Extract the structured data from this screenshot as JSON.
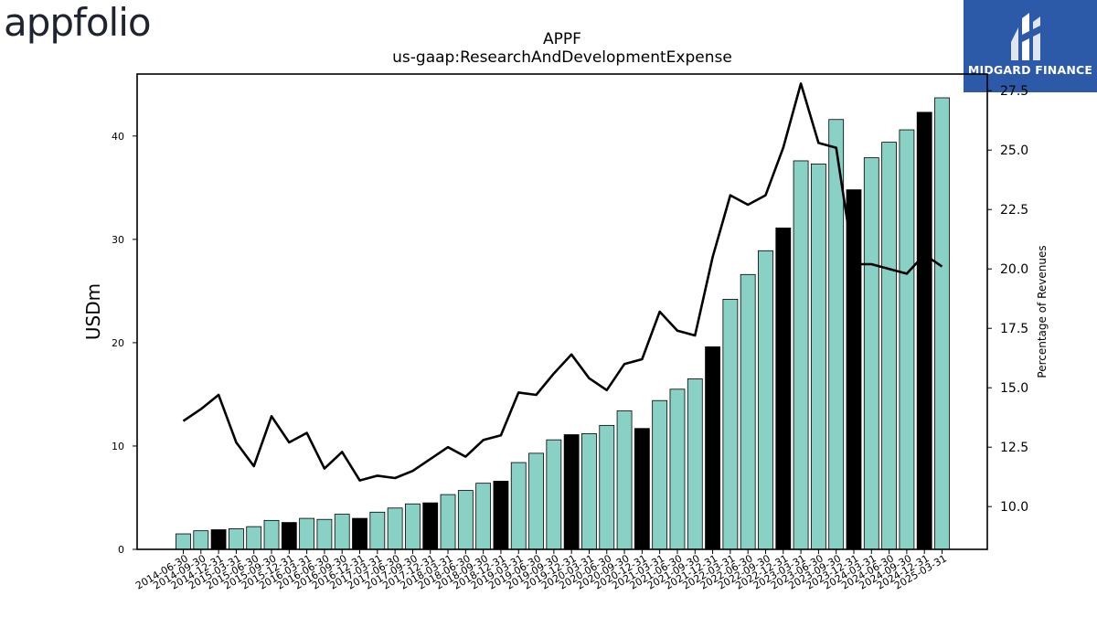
{
  "header": {
    "company_logo_text": "appfolio",
    "brand_name": "MIDGARD FINANCE"
  },
  "chart_data": {
    "type": "bar",
    "title": "APPF",
    "subtitle": "us-gaap:ResearchAndDevelopmentExpense",
    "ylabel": "USDm",
    "y2label": "Percentage of Revenues",
    "ylim": [
      0,
      46
    ],
    "y2lim": [
      8.2,
      28.2
    ],
    "yticks": [
      0,
      10,
      20,
      30,
      40
    ],
    "y2ticks": [
      10.0,
      12.5,
      15.0,
      17.5,
      20.0,
      22.5,
      25.0,
      27.5
    ],
    "colors": {
      "bar": "#88d1c4",
      "bar_q4": "#000000",
      "line": "#000000"
    },
    "categories": [
      "2014-06-30",
      "2014-09-30",
      "2014-12-31",
      "2015-03-31",
      "2015-06-30",
      "2015-09-30",
      "2015-12-31",
      "2016-03-31",
      "2016-06-30",
      "2016-09-30",
      "2016-12-31",
      "2017-03-31",
      "2017-06-30",
      "2017-09-30",
      "2017-12-31",
      "2018-03-31",
      "2018-06-30",
      "2018-09-30",
      "2018-12-31",
      "2019-03-31",
      "2019-06-30",
      "2019-09-30",
      "2019-12-31",
      "2020-03-31",
      "2020-06-30",
      "2020-09-30",
      "2020-12-31",
      "2021-03-31",
      "2021-06-30",
      "2021-09-30",
      "2021-12-31",
      "2022-03-31",
      "2022-06-30",
      "2022-09-30",
      "2022-12-31",
      "2023-03-31",
      "2023-06-30",
      "2023-09-30",
      "2023-12-31",
      "2024-03-31",
      "2024-06-30",
      "2024-09-30",
      "2024-12-31",
      "2025-03-31"
    ],
    "series": [
      {
        "values": [
          1.5,
          1.8,
          1.9,
          2.0,
          2.2,
          2.8,
          2.6,
          3.0,
          2.9,
          3.4,
          3.0,
          3.6,
          4.0,
          4.4,
          4.5,
          5.3,
          5.7,
          6.4,
          6.6,
          8.4,
          9.3,
          10.6,
          11.1,
          11.2,
          12.0,
          13.4,
          11.7,
          14.4,
          15.5,
          16.5,
          19.6,
          24.2,
          26.6,
          28.9,
          31.1,
          37.6,
          37.3,
          41.6,
          34.8,
          37.9,
          39.4,
          40.6,
          42.3,
          43.7
        ]
      },
      {
        "axis": "right",
        "values": [
          13.6,
          14.1,
          14.7,
          12.7,
          11.7,
          13.8,
          12.7,
          13.1,
          11.6,
          12.3,
          11.1,
          11.3,
          11.2,
          11.5,
          12.0,
          12.5,
          12.1,
          12.8,
          13.0,
          14.8,
          14.7,
          15.6,
          16.4,
          15.4,
          14.9,
          16.0,
          16.2,
          18.2,
          17.4,
          17.2,
          20.5,
          23.1,
          22.7,
          23.1,
          25.1,
          27.8,
          25.3,
          25.1,
          20.2,
          20.2,
          20.0,
          19.8,
          20.6,
          20.1
        ]
      }
    ],
    "q4_indices": [
      2,
      6,
      10,
      14,
      18,
      22,
      26,
      30,
      34,
      38,
      42
    ]
  }
}
